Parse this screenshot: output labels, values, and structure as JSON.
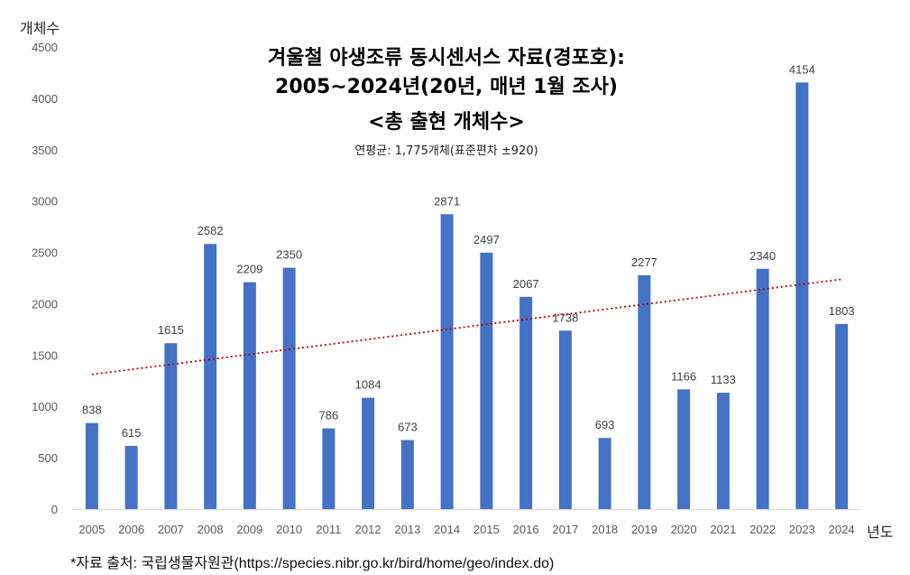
{
  "title_line1": "겨울철 야생조류 동시센서스 자료(경포호):",
  "title_line2": "2005~2024년(20년, 매년 1월 조사)",
  "title_line3": "<총 출현 개체수>",
  "stat_text": "연평균: 1,775개체(표준편차 ±920)",
  "source_text": "*자료 출처: 국립생물자원관(https://species.nibr.go.kr/bird/home/geo/index.do)",
  "chart_data": {
    "type": "bar",
    "title": "겨울철 야생조류 동시센서스 자료(경포호): 2005~2024년(20년, 매년 1월 조사) <총 출현 개체수>",
    "xlabel": "년도",
    "ylabel": "개체수",
    "categories": [
      "2005",
      "2006",
      "2007",
      "2008",
      "2009",
      "2010",
      "2011",
      "2012",
      "2013",
      "2014",
      "2015",
      "2016",
      "2017",
      "2018",
      "2019",
      "2020",
      "2021",
      "2022",
      "2023",
      "2024"
    ],
    "values": [
      838,
      615,
      1615,
      2582,
      2209,
      2350,
      786,
      1084,
      673,
      2871,
      2497,
      2067,
      1738,
      693,
      2277,
      1166,
      1133,
      2340,
      4154,
      1803
    ],
    "ylim": [
      0,
      4500
    ],
    "yticks": [
      0,
      500,
      1000,
      1500,
      2000,
      2500,
      3000,
      3500,
      4000,
      4500
    ],
    "trendline": {
      "type": "linear",
      "style": "dotted",
      "color": "#c00000"
    },
    "bar_color": "#4472c4",
    "grid": false,
    "legend": "none"
  }
}
